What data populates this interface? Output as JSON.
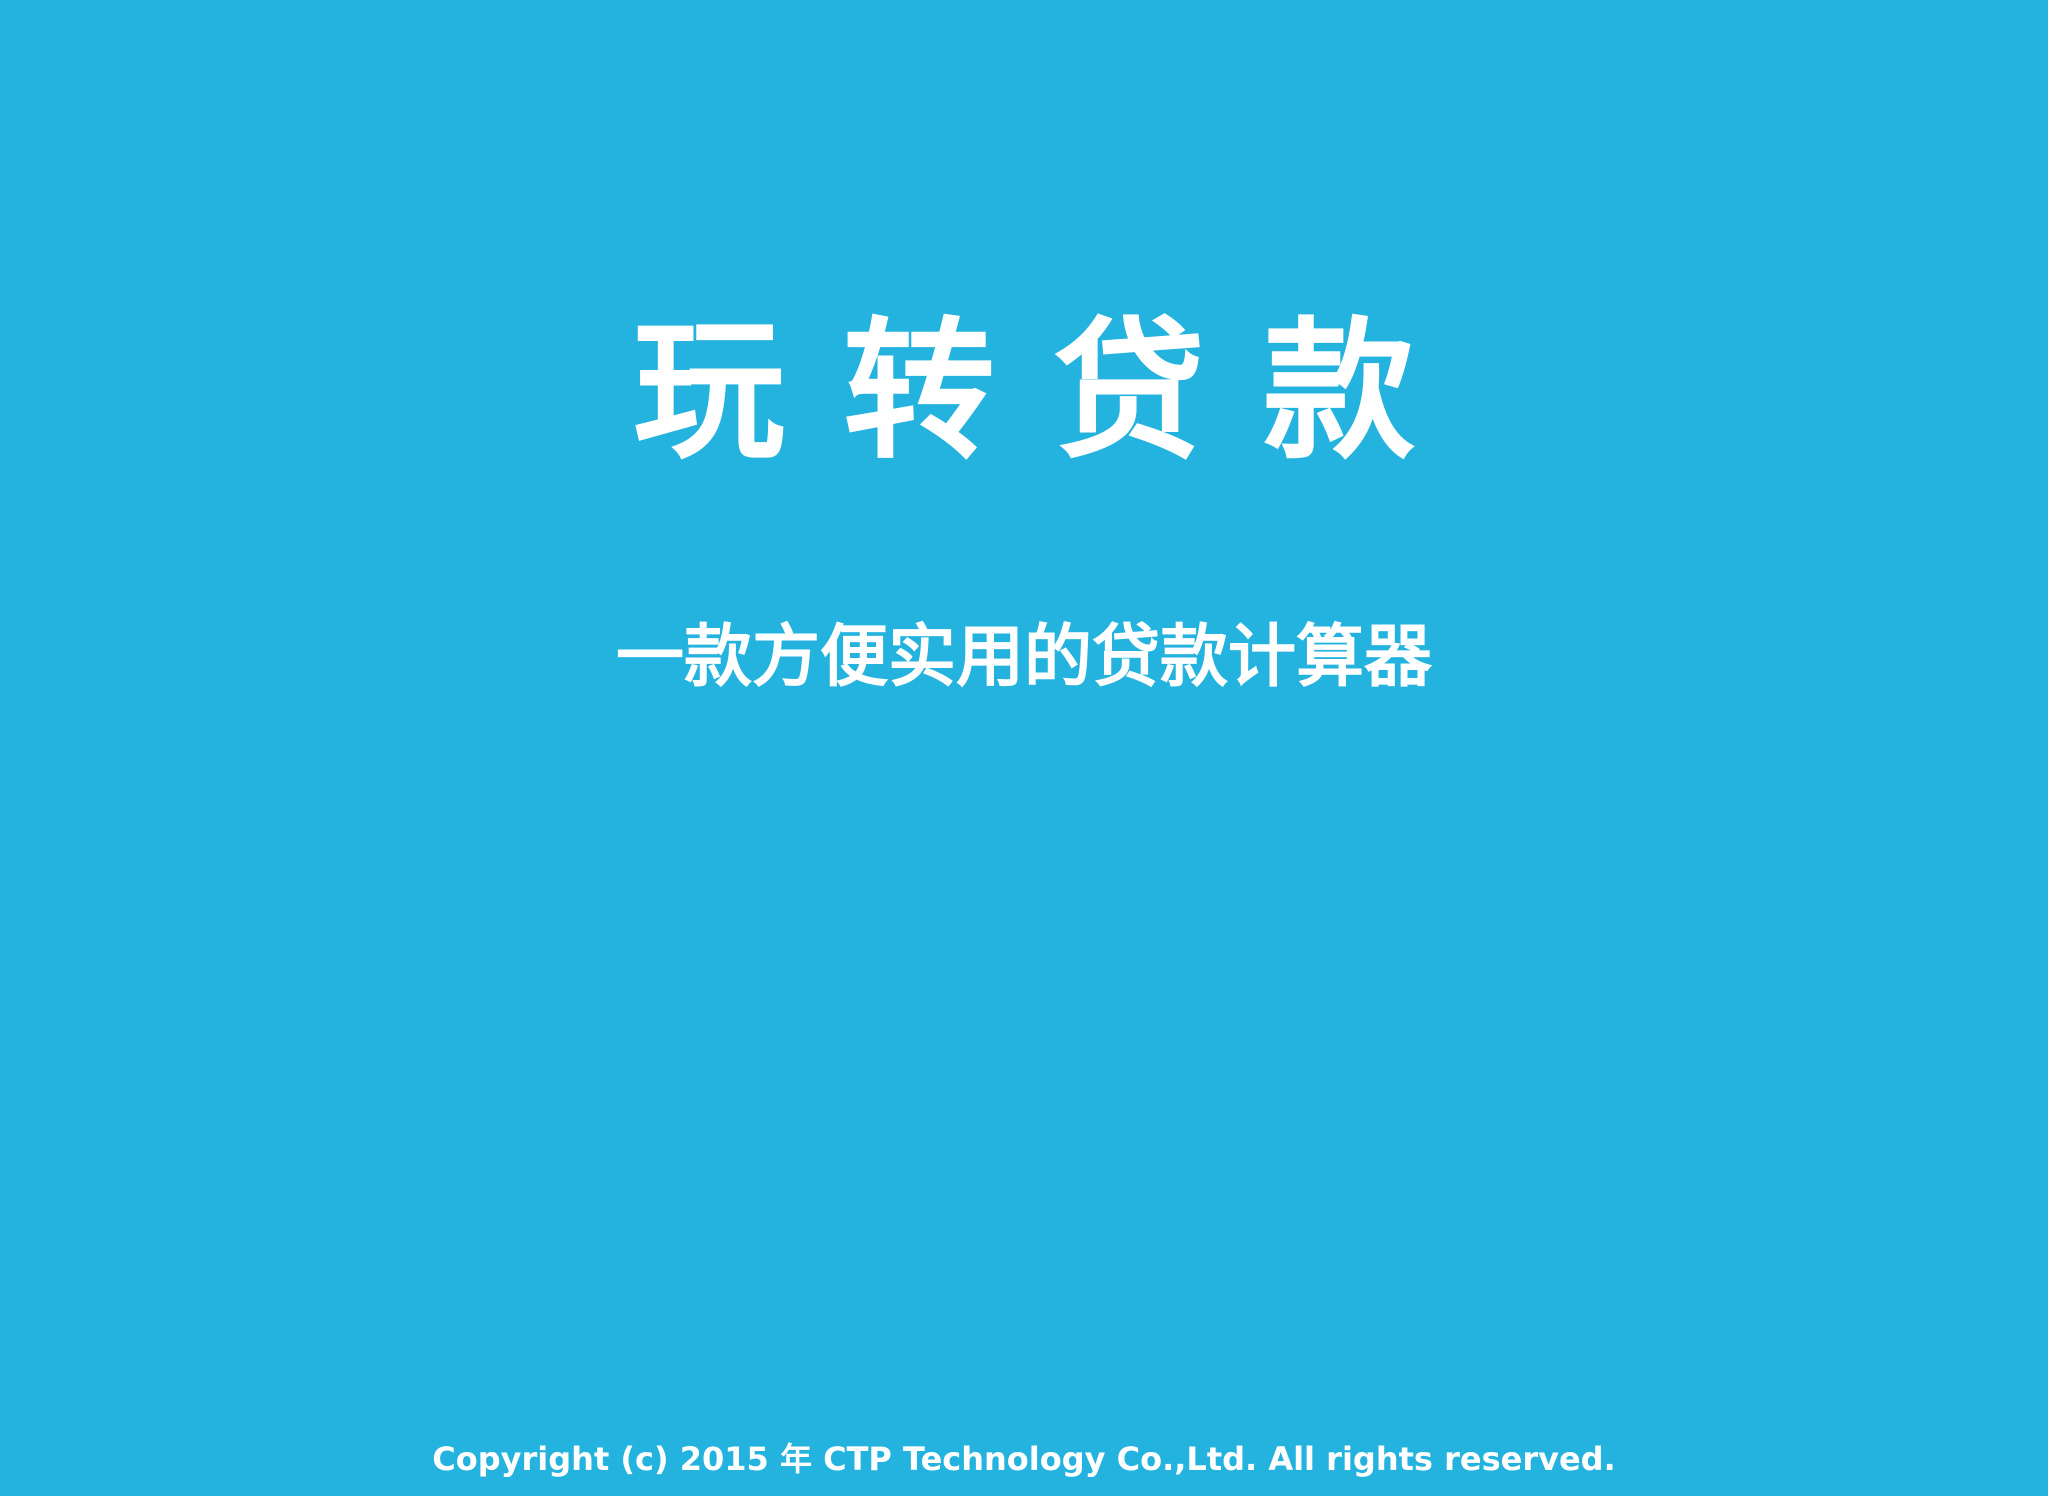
{
  "splash": {
    "title": "玩转贷款",
    "tagline": "一款方便实用的贷款计算器",
    "copyright": "Copyright (c) 2015 年 CTP Technology Co.,Ltd. All rights reserved."
  },
  "colors": {
    "background": "#23b3de",
    "text": "#ffffff"
  }
}
